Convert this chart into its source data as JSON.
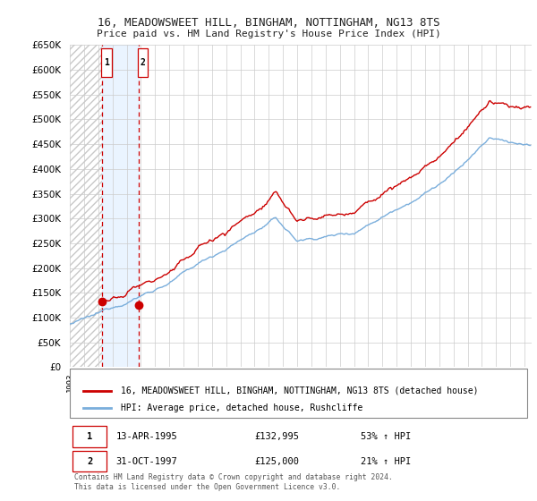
{
  "title1": "16, MEADOWSWEET HILL, BINGHAM, NOTTINGHAM, NG13 8TS",
  "title2": "Price paid vs. HM Land Registry's House Price Index (HPI)",
  "sale1_date": 1995.28,
  "sale1_price": 132995,
  "sale1_label": "13-APR-1995",
  "sale2_date": 1997.83,
  "sale2_price": 125000,
  "sale2_label": "31-OCT-1997",
  "legend_line1": "16, MEADOWSWEET HILL, BINGHAM, NOTTINGHAM, NG13 8TS (detached house)",
  "legend_line2": "HPI: Average price, detached house, Rushcliffe",
  "table_row1_num": "1",
  "table_row1_date": "13-APR-1995",
  "table_row1_price": "£132,995",
  "table_row1_hpi": "53% ↑ HPI",
  "table_row2_num": "2",
  "table_row2_date": "31-OCT-1997",
  "table_row2_price": "£125,000",
  "table_row2_hpi": "21% ↑ HPI",
  "footer": "Contains HM Land Registry data © Crown copyright and database right 2024.\nThis data is licensed under the Open Government Licence v3.0.",
  "ylim_min": 0,
  "ylim_max": 650000,
  "xlim_min": 1993.0,
  "xlim_max": 2025.5,
  "yticks": [
    0,
    50000,
    100000,
    150000,
    200000,
    250000,
    300000,
    350000,
    400000,
    450000,
    500000,
    550000,
    600000,
    650000
  ],
  "color_red": "#cc0000",
  "color_blue": "#7aaedc",
  "color_hatch_edge": "#cccccc",
  "color_shade": "#ddeeff",
  "color_grid": "#cccccc",
  "color_title": "#222222",
  "box_color": "#cc0000",
  "bg_color": "#ffffff"
}
